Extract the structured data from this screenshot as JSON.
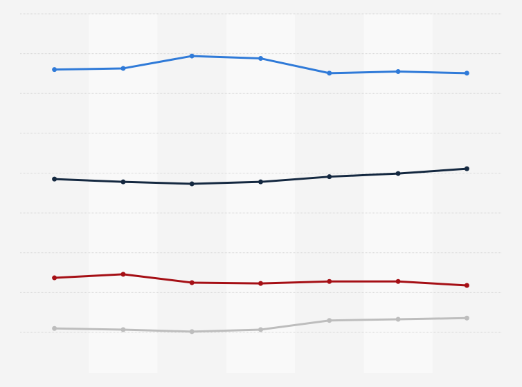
{
  "chart_data": {
    "type": "line",
    "categories": [
      null,
      null,
      null,
      null,
      null,
      null,
      null
    ],
    "series": [
      {
        "color": "#2f7ad8",
        "values": [
          66.0,
          66.3,
          69.4,
          68.8,
          65.1,
          65.5,
          65.1
        ]
      },
      {
        "color": "#142840",
        "values": [
          38.5,
          37.8,
          37.3,
          37.8,
          39.1,
          39.9,
          41.1
        ]
      },
      {
        "color": "#a50f15",
        "values": [
          13.7,
          14.6,
          12.5,
          12.3,
          12.8,
          12.8,
          11.8
        ]
      },
      {
        "color": "#bdbdbd",
        "values": [
          1.0,
          0.7,
          0.2,
          0.7,
          3.0,
          3.3,
          3.6
        ]
      }
    ],
    "ylim": [
      0,
      80
    ],
    "yticks": [
      0,
      10,
      20,
      30,
      40,
      50,
      60,
      70,
      80
    ],
    "grid": true,
    "tick_labels": false,
    "alternating_bands": true
  }
}
